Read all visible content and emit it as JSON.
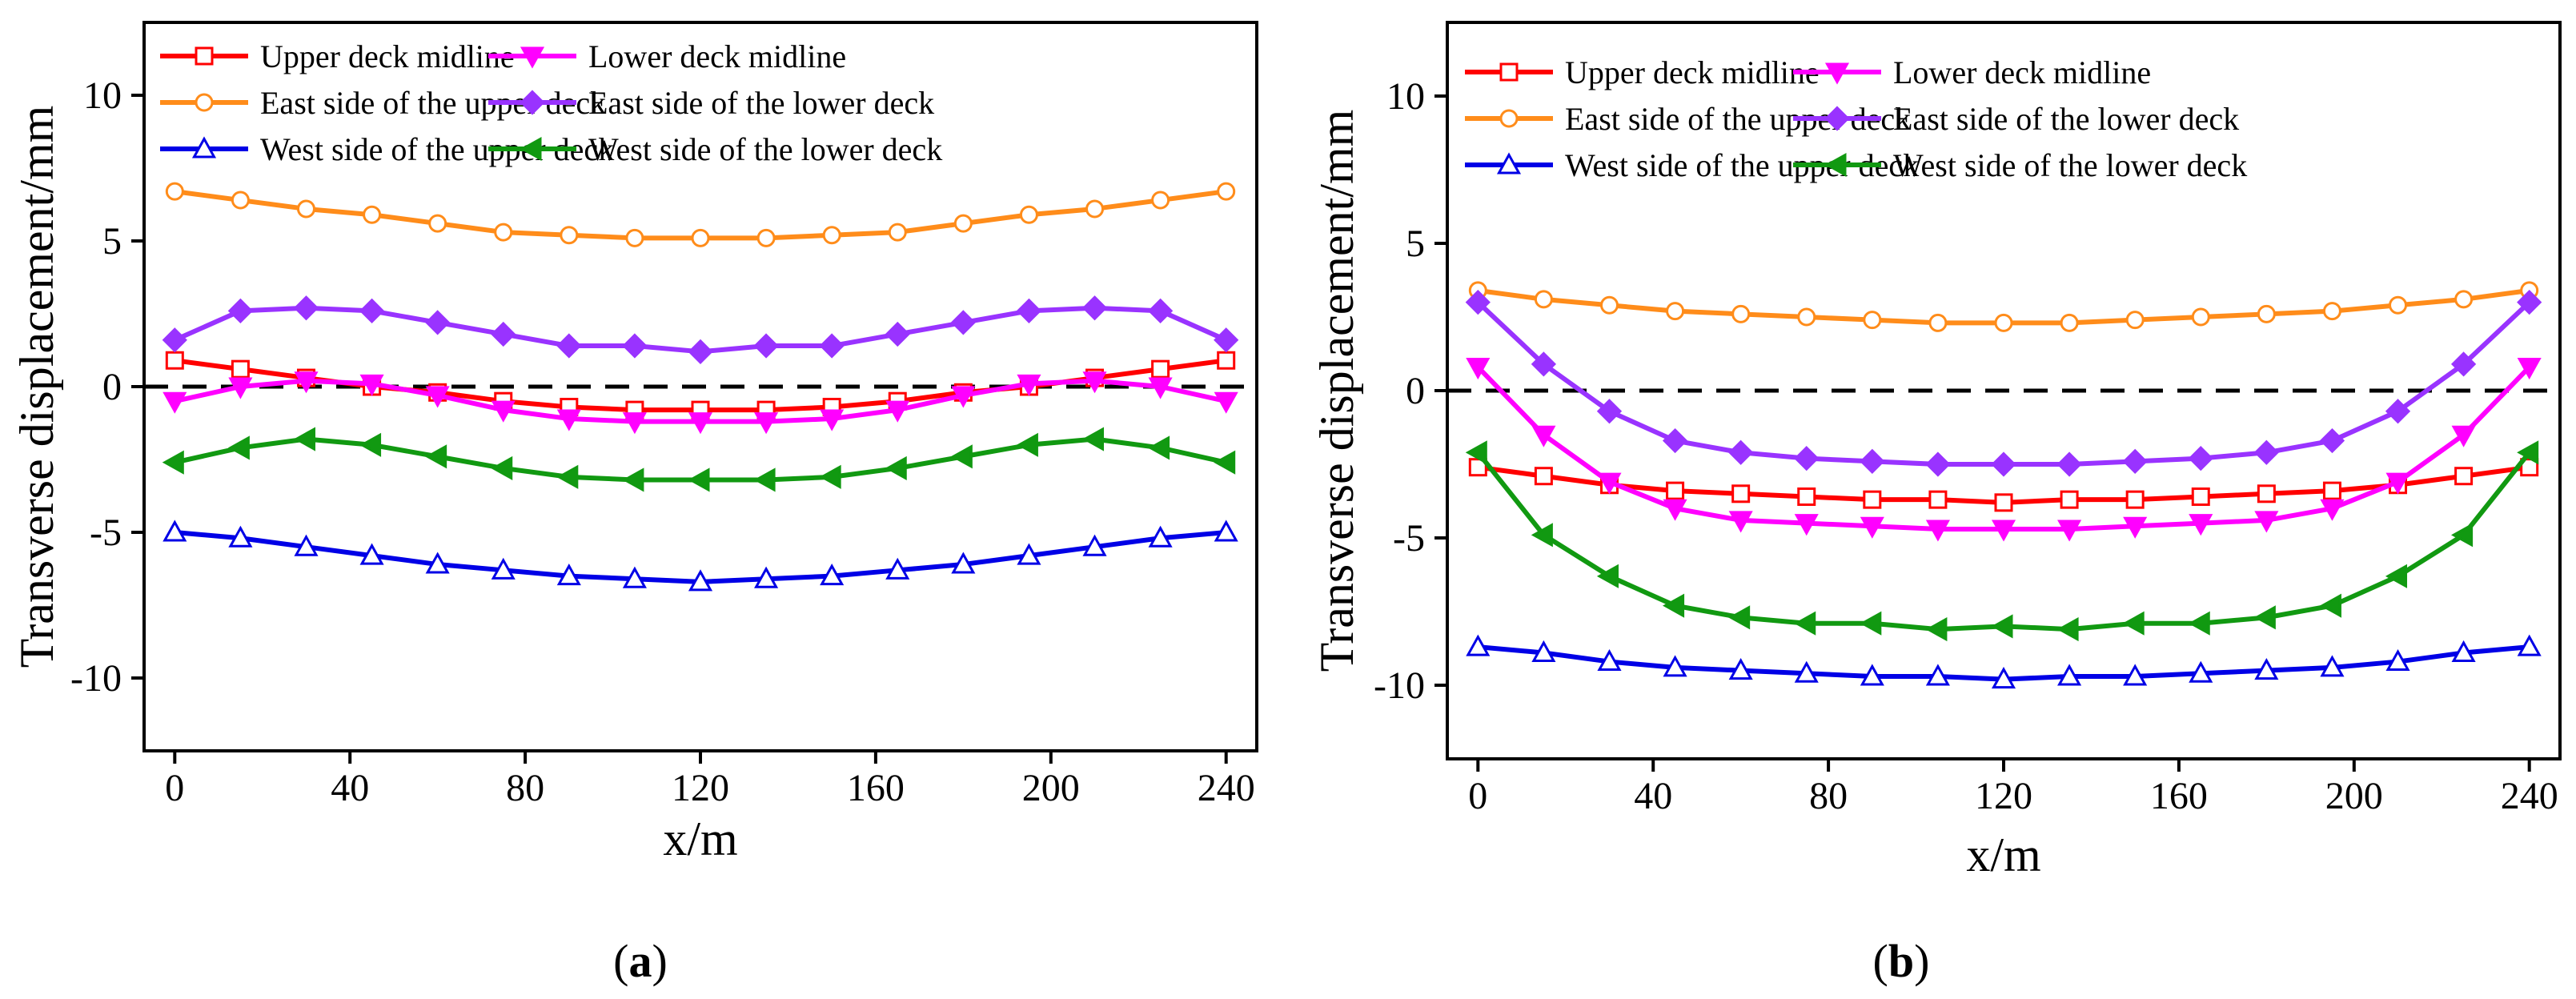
{
  "chart_data": [
    {
      "type": "line",
      "panel_label_open": "(",
      "panel_label_letter": "a",
      "panel_label_close": ")",
      "xlabel": "x/m",
      "ylabel": "Transverse displacement/mm",
      "xlim": [
        -7,
        247
      ],
      "ylim": [
        -12.5,
        12.5
      ],
      "xticks": [
        0,
        40,
        80,
        120,
        160,
        200,
        240
      ],
      "yticks": [
        -10,
        -5,
        0,
        5,
        10
      ],
      "reference_line": 0,
      "x": [
        0,
        15,
        30,
        45,
        60,
        75,
        90,
        105,
        120,
        135,
        150,
        165,
        180,
        195,
        210,
        225,
        240
      ],
      "series": [
        {
          "name": "Upper deck midline",
          "color": "#ff0000",
          "marker": "square",
          "filled": false,
          "values": [
            0.9,
            0.6,
            0.3,
            0.0,
            -0.2,
            -0.5,
            -0.7,
            -0.8,
            -0.8,
            -0.8,
            -0.7,
            -0.5,
            -0.2,
            0.0,
            0.3,
            0.6,
            0.9
          ]
        },
        {
          "name": "Lower deck midline",
          "color": "#ff00ff",
          "marker": "triangle-down",
          "filled": true,
          "values": [
            -0.5,
            0.0,
            0.2,
            0.1,
            -0.3,
            -0.8,
            -1.1,
            -1.2,
            -1.2,
            -1.2,
            -1.1,
            -0.8,
            -0.3,
            0.1,
            0.2,
            0.0,
            -0.5
          ]
        },
        {
          "name": "East side of the upper deck",
          "color": "#ff8c1a",
          "marker": "circle",
          "filled": false,
          "values": [
            6.7,
            6.4,
            6.1,
            5.9,
            5.6,
            5.3,
            5.2,
            5.1,
            5.1,
            5.1,
            5.2,
            5.3,
            5.6,
            5.9,
            6.1,
            6.4,
            6.7
          ]
        },
        {
          "name": "East side of the lower deck",
          "color": "#9933ff",
          "marker": "diamond",
          "filled": true,
          "values": [
            1.6,
            2.6,
            2.7,
            2.6,
            2.2,
            1.8,
            1.4,
            1.4,
            1.2,
            1.4,
            1.4,
            1.8,
            2.2,
            2.6,
            2.7,
            2.6,
            1.6
          ]
        },
        {
          "name": "West side of the upper deck",
          "color": "#0000e6",
          "marker": "triangle-up",
          "filled": false,
          "values": [
            -5.0,
            -5.2,
            -5.5,
            -5.8,
            -6.1,
            -6.3,
            -6.5,
            -6.6,
            -6.7,
            -6.6,
            -6.5,
            -6.3,
            -6.1,
            -5.8,
            -5.5,
            -5.2,
            -5.0
          ]
        },
        {
          "name": "West side of the lower deck",
          "color": "#119911",
          "marker": "triangle-left",
          "filled": true,
          "values": [
            -2.6,
            -2.1,
            -1.8,
            -2.0,
            -2.4,
            -2.8,
            -3.1,
            -3.2,
            -3.2,
            -3.2,
            -3.1,
            -2.8,
            -2.4,
            -2.0,
            -1.8,
            -2.1,
            -2.6
          ]
        }
      ]
    },
    {
      "type": "line",
      "panel_label_open": "(",
      "panel_label_letter": "b",
      "panel_label_close": ")",
      "xlabel": "x/m",
      "ylabel": "Transverse displacement/mm",
      "xlim": [
        -7,
        247
      ],
      "ylim": [
        -12.5,
        12.5
      ],
      "xticks": [
        0,
        40,
        80,
        120,
        160,
        200,
        240
      ],
      "yticks": [
        -10,
        -5,
        0,
        5,
        10
      ],
      "reference_line": 0,
      "x": [
        0,
        15,
        30,
        45,
        60,
        75,
        90,
        105,
        120,
        135,
        150,
        165,
        180,
        195,
        210,
        225,
        240
      ],
      "series": [
        {
          "name": "Upper deck midline",
          "color": "#ff0000",
          "marker": "square",
          "filled": false,
          "values": [
            -2.6,
            -2.9,
            -3.2,
            -3.4,
            -3.5,
            -3.6,
            -3.7,
            -3.7,
            -3.8,
            -3.7,
            -3.7,
            -3.6,
            -3.5,
            -3.4,
            -3.2,
            -2.9,
            -2.6
          ]
        },
        {
          "name": "Lower deck midline",
          "color": "#ff00ff",
          "marker": "triangle-down",
          "filled": true,
          "values": [
            0.8,
            -1.5,
            -3.1,
            -4.0,
            -4.4,
            -4.5,
            -4.6,
            -4.7,
            -4.7,
            -4.7,
            -4.6,
            -4.5,
            -4.4,
            -4.0,
            -3.1,
            -1.5,
            0.8
          ]
        },
        {
          "name": "East side of the upper deck",
          "color": "#ff8c1a",
          "marker": "circle",
          "filled": false,
          "values": [
            3.4,
            3.1,
            2.9,
            2.7,
            2.6,
            2.5,
            2.4,
            2.3,
            2.3,
            2.3,
            2.4,
            2.5,
            2.6,
            2.7,
            2.9,
            3.1,
            3.4
          ]
        },
        {
          "name": "East side of the lower deck",
          "color": "#9933ff",
          "marker": "diamond",
          "filled": true,
          "values": [
            3.0,
            0.9,
            -0.7,
            -1.7,
            -2.1,
            -2.3,
            -2.4,
            -2.5,
            -2.5,
            -2.5,
            -2.4,
            -2.3,
            -2.1,
            -1.7,
            -0.7,
            0.9,
            3.0
          ]
        },
        {
          "name": "West side of the upper deck",
          "color": "#0000e6",
          "marker": "triangle-up",
          "filled": false,
          "values": [
            -8.7,
            -8.9,
            -9.2,
            -9.4,
            -9.5,
            -9.6,
            -9.7,
            -9.7,
            -9.8,
            -9.7,
            -9.7,
            -9.6,
            -9.5,
            -9.4,
            -9.2,
            -8.9,
            -8.7
          ]
        },
        {
          "name": "West side of the lower deck",
          "color": "#119911",
          "marker": "triangle-left",
          "filled": true,
          "values": [
            -2.1,
            -4.9,
            -6.3,
            -7.3,
            -7.7,
            -7.9,
            -7.9,
            -8.1,
            -8.0,
            -8.1,
            -7.9,
            -7.9,
            -7.7,
            -7.3,
            -6.3,
            -4.9,
            -2.1
          ]
        }
      ]
    }
  ]
}
